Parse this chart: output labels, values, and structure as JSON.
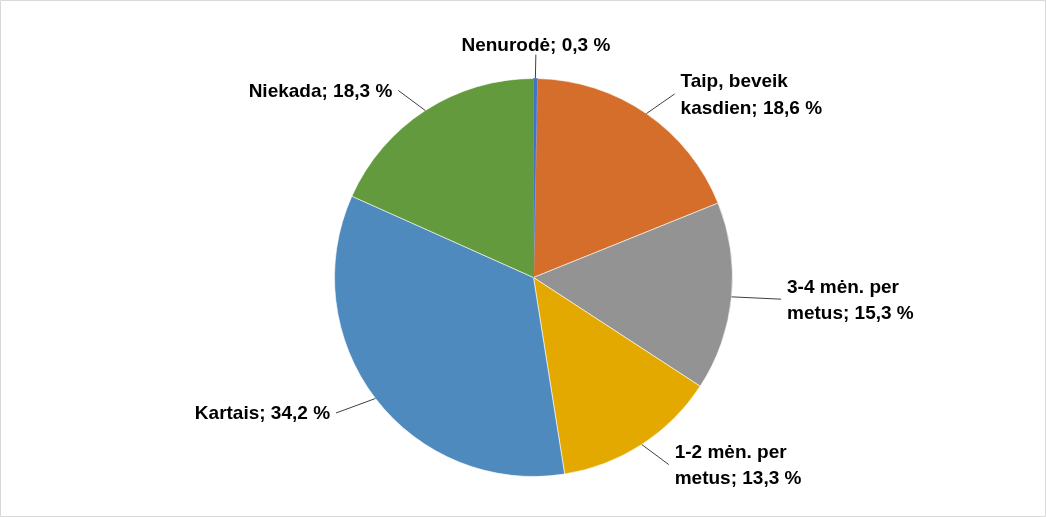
{
  "chart_data": {
    "type": "pie",
    "categories": [
      "Nenurodė",
      "Taip, beveik kasdien",
      "3-4 mėn. per metus",
      "1-2 mėn. per metus",
      "Kartais",
      "Niekada"
    ],
    "values": [
      0.3,
      18.6,
      15.3,
      13.3,
      34.2,
      18.3
    ],
    "colors": [
      "#4472c4",
      "#d46e2a",
      "#939393",
      "#e3a900",
      "#4f8abe",
      "#629a3d"
    ],
    "value_labels": [
      "0,3 %",
      "18,6 %",
      "15,3 %",
      "13,3 %",
      "34,2 %",
      "18,3 %"
    ]
  }
}
